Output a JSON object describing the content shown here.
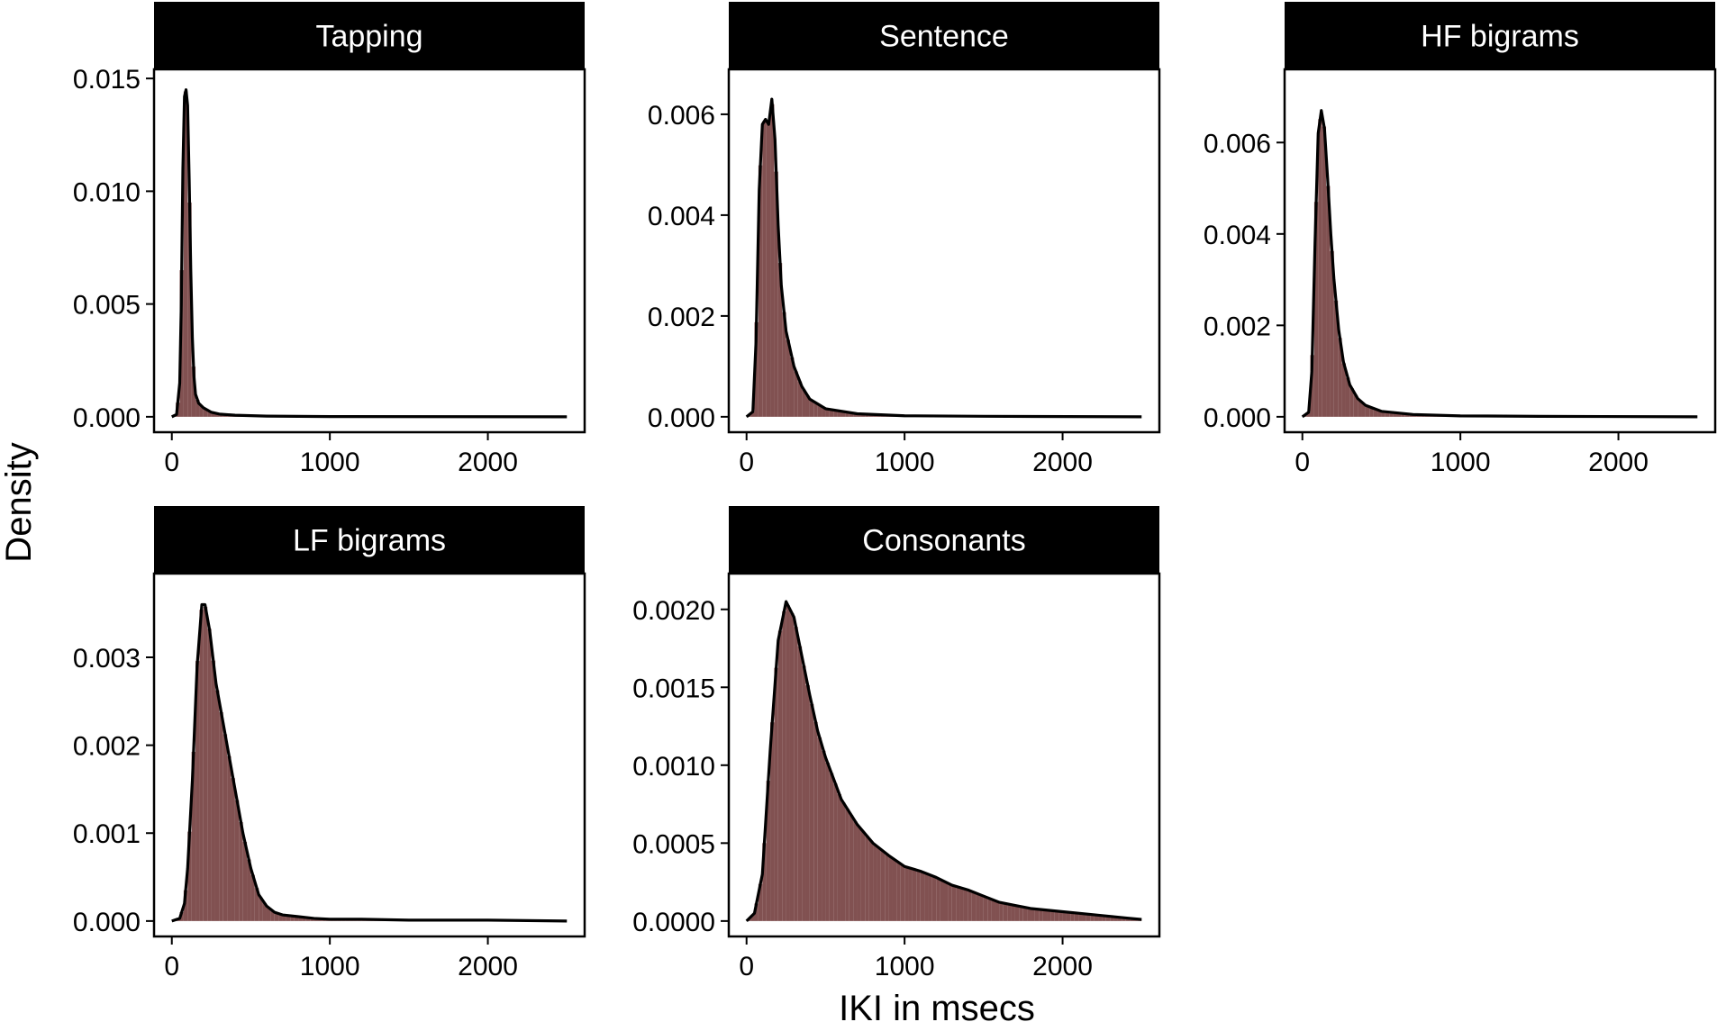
{
  "figure": {
    "xlabel": "IKI in msecs",
    "ylabel": "Density"
  },
  "colors": {
    "histogram_fill": "#7a4848",
    "histogram_highlight": "#d9a7a7",
    "density_line": "#000000",
    "strip_background": "#000000",
    "strip_text": "#ffffff"
  },
  "chart_data": [
    {
      "type": "area",
      "title": "Tapping",
      "xlim": [
        0,
        2500
      ],
      "ylim": [
        0,
        0.0152
      ],
      "xticks": [
        0,
        1000,
        2000
      ],
      "xtick_labels": [
        "0",
        "1000",
        "2000"
      ],
      "yticks": [
        0,
        0.005,
        0.01,
        0.015
      ],
      "ytick_labels": [
        "0.000",
        "0.005",
        "0.010",
        "0.015"
      ],
      "density": {
        "x": [
          0,
          30,
          50,
          60,
          70,
          80,
          90,
          100,
          110,
          120,
          130,
          140,
          150,
          170,
          200,
          250,
          300,
          400,
          600,
          1000,
          2500
        ],
        "y": [
          0,
          0.0001,
          0.0015,
          0.005,
          0.011,
          0.0142,
          0.0145,
          0.0138,
          0.0105,
          0.0065,
          0.0035,
          0.0018,
          0.001,
          0.0006,
          0.0004,
          0.0002,
          0.00012,
          7e-05,
          3e-05,
          1e-05,
          0
        ]
      }
    },
    {
      "type": "area",
      "title": "Sentence",
      "xlim": [
        0,
        2500
      ],
      "ylim": [
        0,
        0.0068
      ],
      "xticks": [
        0,
        1000,
        2000
      ],
      "xtick_labels": [
        "0",
        "1000",
        "2000"
      ],
      "yticks": [
        0,
        0.002,
        0.004,
        0.006
      ],
      "ytick_labels": [
        "0.000",
        "0.002",
        "0.004",
        "0.006"
      ],
      "density": {
        "x": [
          0,
          40,
          60,
          80,
          100,
          120,
          140,
          160,
          180,
          200,
          220,
          250,
          300,
          350,
          400,
          500,
          700,
          1000,
          1500,
          2500
        ],
        "y": [
          0,
          0.0001,
          0.0015,
          0.0045,
          0.0058,
          0.0059,
          0.0058,
          0.0063,
          0.0055,
          0.0038,
          0.0026,
          0.0017,
          0.001,
          0.0006,
          0.00035,
          0.00016,
          6e-05,
          2e-05,
          1e-05,
          0
        ]
      }
    },
    {
      "type": "area",
      "title": "HF bigrams",
      "xlim": [
        0,
        2500
      ],
      "ylim": [
        0,
        0.0075
      ],
      "xticks": [
        0,
        1000,
        2000
      ],
      "xtick_labels": [
        "0",
        "1000",
        "2000"
      ],
      "yticks": [
        0,
        0.002,
        0.004,
        0.006
      ],
      "ytick_labels": [
        "0.000",
        "0.002",
        "0.004",
        "0.006"
      ],
      "density": {
        "x": [
          0,
          40,
          60,
          80,
          100,
          120,
          140,
          160,
          180,
          200,
          230,
          260,
          300,
          350,
          400,
          500,
          700,
          1000,
          1500,
          2500
        ],
        "y": [
          0,
          0.0001,
          0.001,
          0.0038,
          0.0062,
          0.0067,
          0.0063,
          0.0052,
          0.004,
          0.003,
          0.0019,
          0.0012,
          0.0007,
          0.0004,
          0.00025,
          0.00012,
          5e-05,
          2e-05,
          1e-05,
          0
        ]
      }
    },
    {
      "type": "area",
      "title": "LF bigrams",
      "xlim": [
        0,
        2500
      ],
      "ylim": [
        0,
        0.0039
      ],
      "xticks": [
        0,
        1000,
        2000
      ],
      "xtick_labels": [
        "0",
        "1000",
        "2000"
      ],
      "yticks": [
        0,
        0.001,
        0.002,
        0.003
      ],
      "ytick_labels": [
        "0.000",
        "0.001",
        "0.002",
        "0.003"
      ],
      "density": {
        "x": [
          0,
          50,
          80,
          100,
          130,
          160,
          190,
          210,
          240,
          280,
          320,
          360,
          400,
          450,
          500,
          550,
          600,
          650,
          700,
          800,
          900,
          1000,
          1200,
          1500,
          2000,
          2500
        ],
        "y": [
          0,
          3e-05,
          0.0002,
          0.0006,
          0.0016,
          0.0029,
          0.0036,
          0.0036,
          0.0033,
          0.0027,
          0.0023,
          0.0019,
          0.0015,
          0.001,
          0.0006,
          0.0003,
          0.00017,
          0.0001,
          7e-05,
          5e-05,
          3e-05,
          2e-05,
          2e-05,
          1e-05,
          1e-05,
          0
        ]
      }
    },
    {
      "type": "area",
      "title": "Consonants",
      "xlim": [
        0,
        2500
      ],
      "ylim": [
        0,
        0.0022
      ],
      "xticks": [
        0,
        1000,
        2000
      ],
      "xtick_labels": [
        "0",
        "1000",
        "2000"
      ],
      "yticks": [
        0,
        0.0005,
        0.001,
        0.0015,
        0.002
      ],
      "ytick_labels": [
        "0.0000",
        "0.0005",
        "0.0010",
        "0.0015",
        "0.0020"
      ],
      "density": {
        "x": [
          0,
          50,
          100,
          150,
          200,
          250,
          300,
          350,
          400,
          450,
          500,
          600,
          700,
          800,
          900,
          1000,
          1100,
          1200,
          1300,
          1400,
          1500,
          1600,
          1700,
          1800,
          1900,
          2000,
          2100,
          2200,
          2300,
          2400,
          2500
        ],
        "y": [
          0,
          5e-05,
          0.0003,
          0.0011,
          0.0018,
          0.00205,
          0.00195,
          0.0017,
          0.00145,
          0.00122,
          0.00105,
          0.00078,
          0.00062,
          0.0005,
          0.00042,
          0.00035,
          0.00032,
          0.00028,
          0.00023,
          0.0002,
          0.00016,
          0.00012,
          0.0001,
          8e-05,
          7e-05,
          6e-05,
          5e-05,
          4e-05,
          3e-05,
          2e-05,
          1e-05
        ]
      }
    }
  ]
}
